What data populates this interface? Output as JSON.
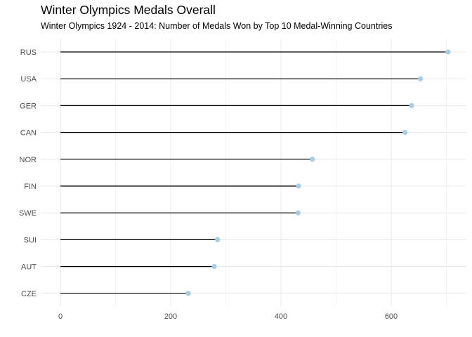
{
  "chart_data": {
    "type": "lollipop",
    "title": "Winter Olympics Medals Overall",
    "subtitle": "Winter Olympics 1924 - 2014: Number of Medals Won by Top 10 Medal-Winning Countries",
    "xlabel": "",
    "ylabel": "",
    "xlim": [
      0,
      735
    ],
    "x_ticks": [
      0,
      200,
      400,
      600
    ],
    "grid": true,
    "categories": [
      "RUS",
      "USA",
      "GER",
      "CAN",
      "NOR",
      "FIN",
      "SWE",
      "SUI",
      "AUT",
      "CZE"
    ],
    "values": [
      703,
      653,
      637,
      625,
      457,
      432,
      431,
      285,
      279,
      232
    ],
    "colors": {
      "point": "#a6cee3",
      "stem": "#000000",
      "grid": "#ebebeb"
    }
  }
}
